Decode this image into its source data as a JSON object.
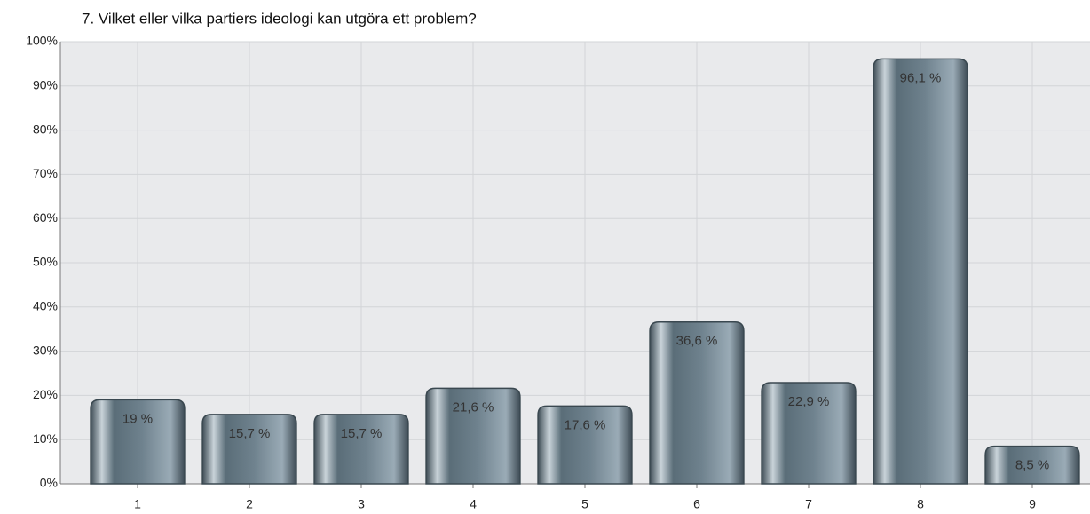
{
  "chart_data": {
    "type": "bar",
    "title": "7. Vilket eller vilka partiers ideologi kan utgöra ett problem?",
    "categories": [
      "1",
      "2",
      "3",
      "4",
      "5",
      "6",
      "7",
      "8",
      "9"
    ],
    "values": [
      19,
      15.7,
      15.7,
      21.6,
      17.6,
      36.6,
      22.9,
      96.1,
      8.5
    ],
    "value_labels": [
      "19 %",
      "15,7 %",
      "15,7 %",
      "21,6 %",
      "17,6 %",
      "36,6 %",
      "22,9 %",
      "96,1 %",
      "8,5 %"
    ],
    "color": "#5d717d",
    "ylim": [
      0,
      100
    ],
    "yticks": [
      {
        "value": 0,
        "label": "0%"
      },
      {
        "value": 10,
        "label": "10%"
      },
      {
        "value": 20,
        "label": "20%"
      },
      {
        "value": 30,
        "label": "30%"
      },
      {
        "value": 40,
        "label": "40%"
      },
      {
        "value": 50,
        "label": "50%"
      },
      {
        "value": 60,
        "label": "60%"
      },
      {
        "value": 70,
        "label": "70%"
      },
      {
        "value": 80,
        "label": "80%"
      },
      {
        "value": 90,
        "label": "90%"
      },
      {
        "value": 100,
        "label": "100%"
      }
    ],
    "grid": true
  }
}
